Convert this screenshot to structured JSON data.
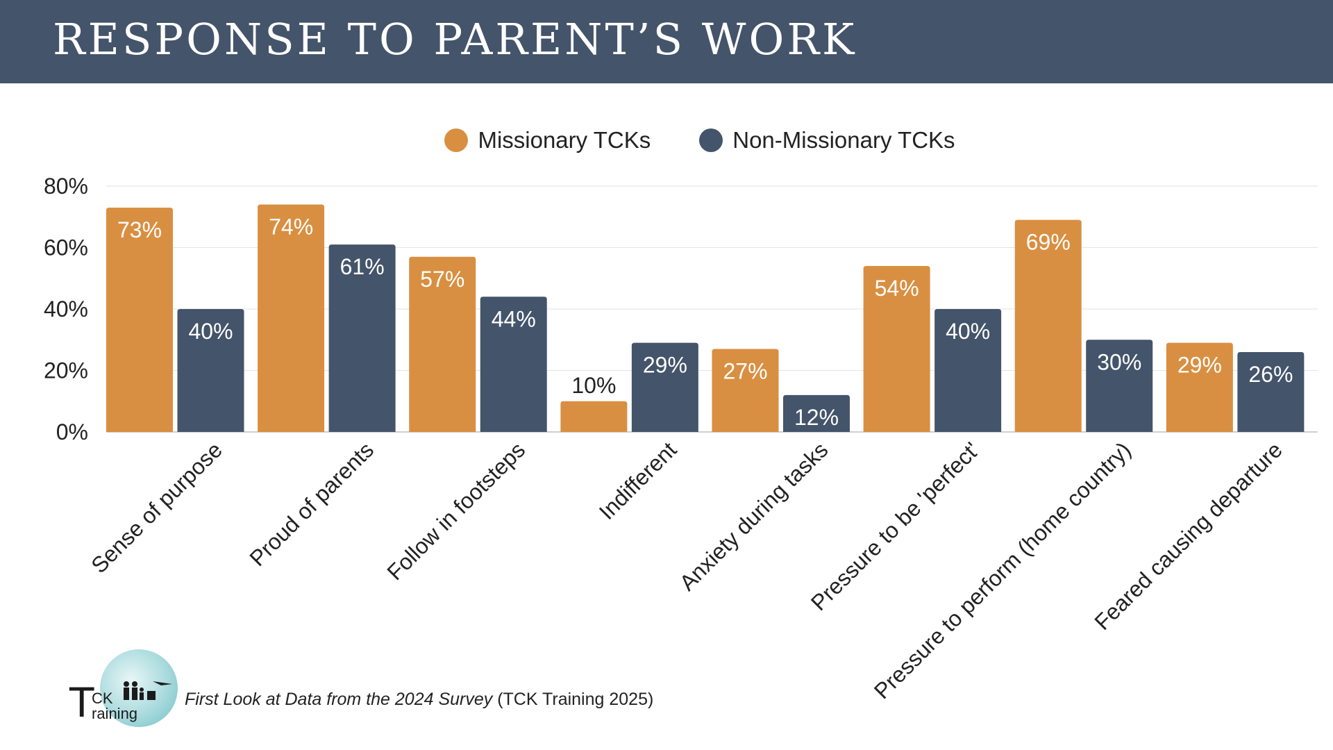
{
  "header": {
    "title": "RESPONSE TO PARENT’S WORK"
  },
  "colors": {
    "header_bg": "#44546a",
    "missionary": "#d98f41",
    "non_missionary": "#44546a"
  },
  "chart_data": {
    "type": "bar",
    "title": "RESPONSE TO PARENT’S WORK",
    "categories": [
      "Sense of purpose",
      "Proud of parents",
      "Follow in footsteps",
      "Indifferent",
      "Anxiety during tasks",
      "Pressure to be 'perfect'",
      "Pressure to perform (home country)",
      "Feared causing departure"
    ],
    "series": [
      {
        "name": "Missionary TCKs",
        "color": "#d98f41",
        "values": [
          73,
          74,
          57,
          10,
          27,
          54,
          69,
          29
        ]
      },
      {
        "name": "Non-Missionary TCKs",
        "color": "#44546a",
        "values": [
          40,
          61,
          44,
          29,
          12,
          40,
          30,
          26
        ]
      }
    ],
    "value_labels": {
      "Missionary TCKs": [
        "73%",
        "74%",
        "57%",
        "10%",
        "27%",
        "54%",
        "69%",
        "29%"
      ],
      "Non-Missionary TCKs": [
        "40%",
        "61%",
        "44%",
        "29%",
        "12%",
        "40%",
        "30%",
        "26%"
      ]
    },
    "ylim": [
      0,
      80
    ],
    "yticks": [
      0,
      20,
      40,
      60,
      80
    ],
    "ytick_labels": [
      "0%",
      "20%",
      "40%",
      "60%",
      "80%"
    ],
    "xlabel": "",
    "ylabel": "",
    "grid": true,
    "legend_position": "top-center"
  },
  "legend": {
    "items": [
      {
        "label": "Missionary TCKs",
        "color": "#d98f41"
      },
      {
        "label": "Non-Missionary TCKs",
        "color": "#44546a"
      }
    ]
  },
  "footer": {
    "logo_text_big": "T",
    "logo_text_ck": "CK",
    "logo_text_raining": "raining",
    "caption_italic": "First Look at Data from the 2024 Survey",
    "caption_plain": " (TCK Training 2025)"
  }
}
